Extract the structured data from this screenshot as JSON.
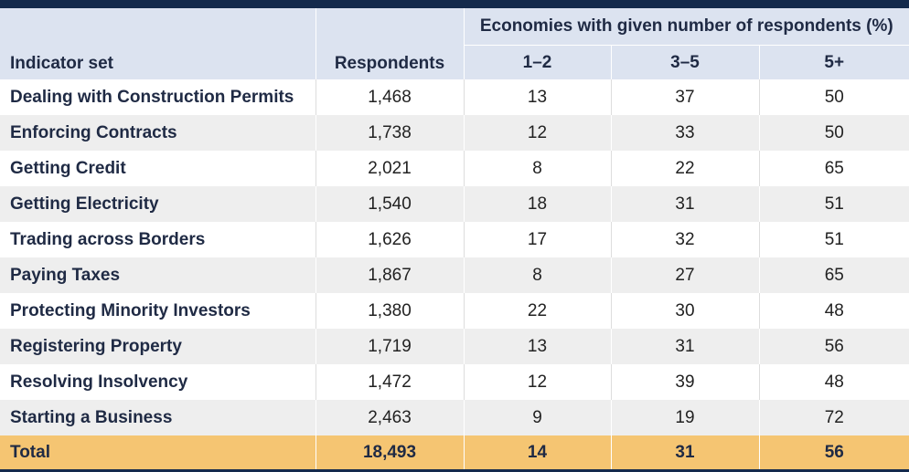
{
  "table": {
    "group_header": "Economies with given number of respondents (%)",
    "columns": [
      "Indicator set",
      "Respondents",
      "1–2",
      "3–5",
      "5+"
    ],
    "rows": [
      {
        "indicator": "Dealing with Construction Permits",
        "respondents": "1,468",
        "r1_2": "13",
        "r3_5": "37",
        "r5plus": "50"
      },
      {
        "indicator": "Enforcing Contracts",
        "respondents": "1,738",
        "r1_2": "12",
        "r3_5": "33",
        "r5plus": "50"
      },
      {
        "indicator": "Getting Credit",
        "respondents": "2,021",
        "r1_2": "8",
        "r3_5": "22",
        "r5plus": "65"
      },
      {
        "indicator": "Getting Electricity",
        "respondents": "1,540",
        "r1_2": "18",
        "r3_5": "31",
        "r5plus": "51"
      },
      {
        "indicator": "Trading across Borders",
        "respondents": "1,626",
        "r1_2": "17",
        "r3_5": "32",
        "r5plus": "51"
      },
      {
        "indicator": "Paying Taxes",
        "respondents": "1,867",
        "r1_2": "8",
        "r3_5": "27",
        "r5plus": "65"
      },
      {
        "indicator": "Protecting Minority Investors",
        "respondents": "1,380",
        "r1_2": "22",
        "r3_5": "30",
        "r5plus": "48"
      },
      {
        "indicator": "Registering Property",
        "respondents": "1,719",
        "r1_2": "13",
        "r3_5": "31",
        "r5plus": "56"
      },
      {
        "indicator": "Resolving Insolvency",
        "respondents": "1,472",
        "r1_2": "12",
        "r3_5": "39",
        "r5plus": "48"
      },
      {
        "indicator": "Starting a Business",
        "respondents": "2,463",
        "r1_2": "9",
        "r3_5": "19",
        "r5plus": "72"
      }
    ],
    "total": {
      "indicator": "Total",
      "respondents": "18,493",
      "r1_2": "14",
      "r3_5": "31",
      "r5plus": "56"
    }
  },
  "colors": {
    "header_bg": "#dce3f0",
    "bar": "#142a4c",
    "total_bg": "#f5c572",
    "stripe": "#eeeeee"
  }
}
